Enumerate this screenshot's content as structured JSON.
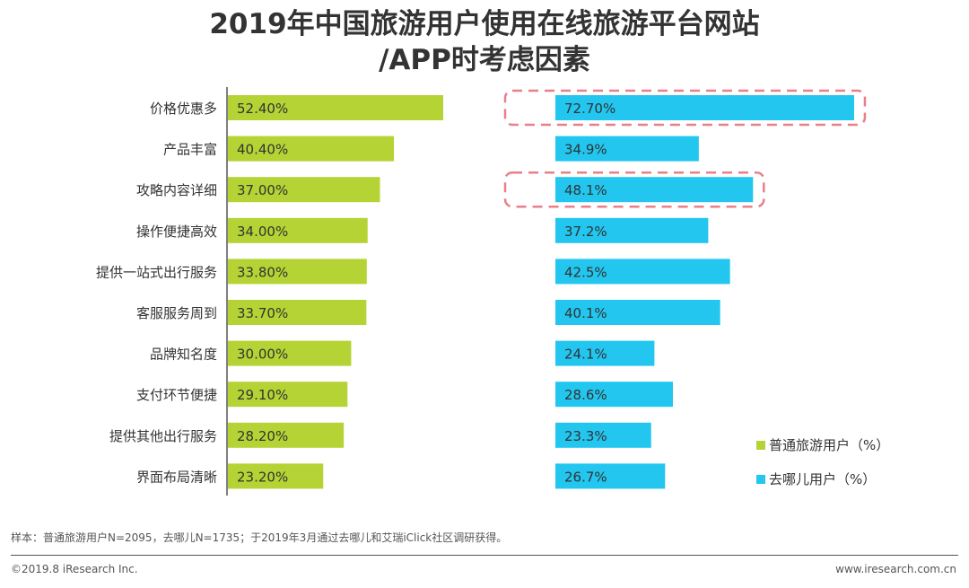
{
  "title_line1": "2019年中国旅游用户使用在线旅游平台网站",
  "title_line2": "/APP时考虑因素",
  "colors": {
    "green": "#b5d334",
    "blue": "#22c6ef",
    "highlight": "#e8808a",
    "axis": "#555555"
  },
  "chart_data": {
    "type": "bar",
    "orientation": "horizontal",
    "categories": [
      "价格优惠多",
      "产品丰富",
      "攻略内容详细",
      "操作便捷高效",
      "提供一站式出行服务",
      "客服服务周到",
      "品牌知名度",
      "支付环节便捷",
      "提供其他出行服务",
      "界面布局清晰"
    ],
    "series": [
      {
        "name": "普通旅游用户（%）",
        "values": [
          52.4,
          40.4,
          37.0,
          34.0,
          33.8,
          33.7,
          30.0,
          29.1,
          28.2,
          23.2
        ],
        "labels": [
          "52.40%",
          "40.40%",
          "37.00%",
          "34.00%",
          "33.80%",
          "33.70%",
          "30.00%",
          "29.10%",
          "28.20%",
          "23.20%"
        ]
      },
      {
        "name": "去哪儿用户（%）",
        "values": [
          72.7,
          34.9,
          48.1,
          37.2,
          42.5,
          40.1,
          24.1,
          28.6,
          23.3,
          26.7
        ],
        "labels": [
          "72.70%",
          "34.9%",
          "48.1%",
          "37.2%",
          "42.5%",
          "40.1%",
          "24.1%",
          "28.6%",
          "23.3%",
          "26.7%"
        ]
      }
    ],
    "highlighted_categories": [
      "价格优惠多",
      "攻略内容详细"
    ],
    "legend": [
      "普通旅游用户（%）",
      "去哪儿用户（%）"
    ]
  },
  "footer": {
    "note": "样本：普通旅游用户N=2095，去哪儿N=1735；于2019年3月通过去哪儿和艾瑞iClick社区调研获得。",
    "copyright": "©2019.8 iResearch Inc.",
    "website": "www.iresearch.com.cn"
  }
}
